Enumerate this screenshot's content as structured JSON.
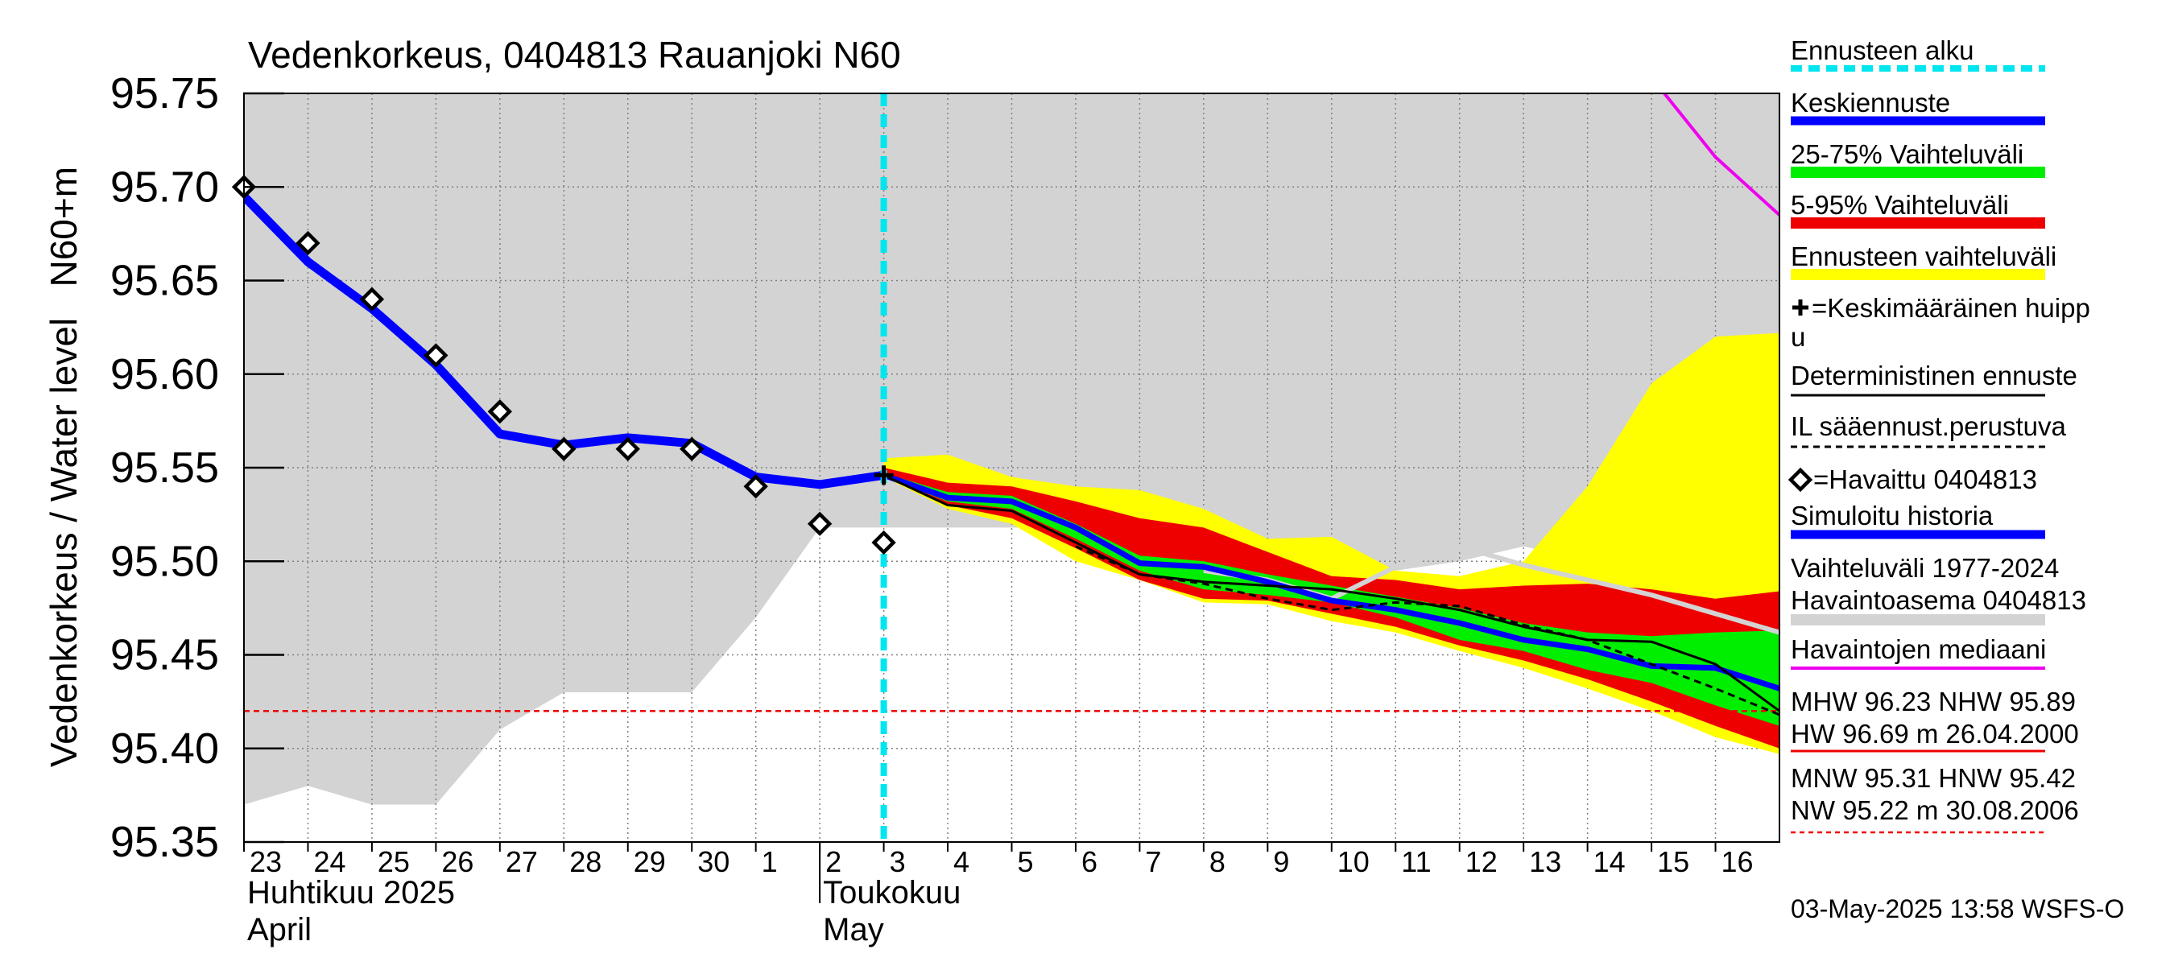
{
  "chart_data": {
    "type": "line",
    "title": "Vedenkorkeus, 0404813 Rauanjoki N60",
    "ylabel": "Vedenkorkeus / Water level   N60+m",
    "ylim": [
      95.35,
      95.75
    ],
    "yticks": [
      "95.35",
      "95.40",
      "95.45",
      "95.50",
      "95.55",
      "95.60",
      "95.65",
      "95.70",
      "95.75"
    ],
    "x_start_day": 23,
    "x_end_day": 47,
    "x_tick_labels": [
      "23",
      "24",
      "25",
      "26",
      "27",
      "28",
      "29",
      "30",
      "1",
      "2",
      "3",
      "4",
      "5",
      "6",
      "7",
      "8",
      "9",
      "10",
      "11",
      "12",
      "13",
      "14",
      "15",
      "16"
    ],
    "month_labels": [
      {
        "name": "Huhtikuu  2025",
        "name_en": "April",
        "day": 23
      },
      {
        "name": "Toukokuu",
        "name_en": "May",
        "day": 32
      }
    ],
    "forecast_start_day": 33,
    "range_band": {
      "x": [
        23,
        24,
        25,
        26,
        27,
        28,
        29,
        30,
        31,
        32,
        33,
        36,
        37,
        38,
        39,
        40,
        41,
        42,
        43,
        44,
        45,
        46,
        47
      ],
      "lower": [
        95.37,
        95.38,
        95.37,
        95.37,
        95.41,
        95.43,
        95.43,
        95.43,
        95.47,
        95.518,
        95.518,
        95.518,
        95.505,
        95.49,
        95.487,
        95.485,
        95.495,
        95.5,
        95.508,
        95.5,
        95.49,
        95.478,
        95.466
      ],
      "upper": 95.75
    },
    "yellow_band": {
      "x": [
        33,
        34,
        35,
        36,
        37,
        38,
        39,
        40,
        41,
        42,
        43,
        44,
        45,
        46,
        47
      ],
      "upper": [
        95.555,
        95.557,
        95.545,
        95.54,
        95.538,
        95.528,
        95.512,
        95.513,
        95.495,
        95.492,
        95.5,
        95.54,
        95.595,
        95.62,
        95.622
      ],
      "lower": [
        95.545,
        95.528,
        95.52,
        95.5,
        95.49,
        95.478,
        95.477,
        95.468,
        95.462,
        95.452,
        95.443,
        95.432,
        95.42,
        95.406,
        95.397
      ]
    },
    "red_band": {
      "x": [
        33,
        34,
        35,
        36,
        37,
        38,
        39,
        40,
        41,
        42,
        43,
        44,
        45,
        46,
        47
      ],
      "upper": [
        95.55,
        95.542,
        95.54,
        95.532,
        95.523,
        95.518,
        95.505,
        95.492,
        95.49,
        95.485,
        95.487,
        95.488,
        95.485,
        95.48,
        95.484
      ],
      "lower": [
        95.545,
        95.53,
        95.523,
        95.507,
        95.49,
        95.48,
        95.479,
        95.472,
        95.465,
        95.455,
        95.447,
        95.437,
        95.425,
        95.412,
        95.4
      ]
    },
    "green_band": {
      "x": [
        33,
        34,
        35,
        36,
        37,
        38,
        39,
        40,
        41,
        42,
        43,
        44,
        45,
        46,
        47
      ],
      "upper": [
        95.547,
        95.537,
        95.535,
        95.52,
        95.503,
        95.5,
        95.493,
        95.487,
        95.481,
        95.475,
        95.467,
        95.462,
        95.46,
        95.462,
        95.463
      ],
      "lower": [
        95.545,
        95.532,
        95.528,
        95.512,
        95.495,
        95.485,
        95.482,
        95.478,
        95.47,
        95.458,
        95.452,
        95.442,
        95.435,
        95.423,
        95.412
      ]
    },
    "series": [
      {
        "name": "Simuloitu historia",
        "color": "#0000ff",
        "x": [
          23,
          24,
          25,
          26,
          27,
          28,
          29,
          30,
          31,
          32,
          33
        ],
        "values": [
          95.695,
          95.66,
          95.635,
          95.605,
          95.568,
          95.562,
          95.566,
          95.563,
          95.545,
          95.541,
          95.546
        ]
      },
      {
        "name": "Keskiennuste",
        "color": "#0000ff",
        "x": [
          33,
          34,
          35,
          36,
          37,
          38,
          39,
          40,
          41,
          42,
          43,
          44,
          45,
          46,
          47
        ],
        "values": [
          95.546,
          95.534,
          95.532,
          95.518,
          95.499,
          95.497,
          95.489,
          95.479,
          95.474,
          95.467,
          95.458,
          95.453,
          95.444,
          95.443,
          95.432
        ]
      },
      {
        "name": "Deterministinen ennuste",
        "color": "#000000",
        "x": [
          33,
          34,
          35,
          36,
          37,
          38,
          39,
          40,
          41,
          42,
          43,
          44,
          45,
          46,
          47
        ],
        "values": [
          95.546,
          95.53,
          95.527,
          95.51,
          95.493,
          95.489,
          95.487,
          95.485,
          95.48,
          95.474,
          95.465,
          95.458,
          95.457,
          95.445,
          95.42
        ]
      },
      {
        "name": "IL sääennust.perustuva",
        "color": "#000000",
        "dashed": true,
        "x": [
          36,
          37,
          38,
          39,
          40,
          41,
          42,
          43,
          44,
          45,
          46,
          47
        ],
        "values": [
          95.508,
          95.493,
          95.488,
          95.48,
          95.474,
          95.478,
          95.476,
          95.466,
          95.458,
          95.445,
          95.432,
          95.418
        ]
      },
      {
        "name": "Havaintojen mediaani",
        "color": "#ee00ee",
        "x": [
          45.2,
          46,
          47
        ],
        "values": [
          95.75,
          95.716,
          95.685
        ]
      }
    ],
    "median_grey": {
      "x": [
        38,
        39,
        40,
        41,
        42,
        43,
        44,
        45,
        46,
        47
      ],
      "values": [
        95.495,
        95.49,
        95.48,
        95.497,
        95.508,
        95.498,
        95.49,
        95.482,
        95.472,
        95.462
      ]
    },
    "observed": {
      "name": "=Havaittu 0404813",
      "x": [
        23,
        24,
        25,
        26,
        27,
        28,
        29,
        30,
        31,
        32,
        33
      ],
      "values": [
        95.7,
        95.67,
        95.64,
        95.61,
        95.58,
        95.56,
        95.56,
        95.56,
        95.54,
        95.52,
        95.51
      ]
    },
    "mean_peak": {
      "x": 33,
      "value": 95.546
    },
    "reference_line": {
      "value": 95.42,
      "color": "#ee0000"
    },
    "legend": [
      "Ennusteen alku",
      "Keskiennuste",
      "25-75% Vaihteluväli",
      "5-95% Vaihteluväli",
      "Ennusteen vaihteluväli",
      "=Keskimääräinen huipp",
      "u",
      "Deterministinen ennuste",
      "IL sääennust.perustuva",
      "=Havaittu 0404813",
      "Simuloitu historia",
      "Vaihteluväli 1977-2024",
      " Havaintoasema 0404813",
      "Havaintojen mediaani",
      "MHW  96.23 NHW  95.89",
      "HW  96.69 m 26.04.2000",
      "MNW  95.31 HNW  95.42",
      "NW  95.22 m 30.08.2006"
    ],
    "colors": {
      "blue": "#0000ff",
      "cyan": "#00e5ee",
      "green": "#00ee00",
      "red": "#ee0000",
      "yellow": "#ffff00",
      "grey": "#d3d3d3",
      "magenta": "#ee00ee",
      "grid": "#808080"
    },
    "footer": "03-May-2025 13:58 WSFS-O"
  }
}
